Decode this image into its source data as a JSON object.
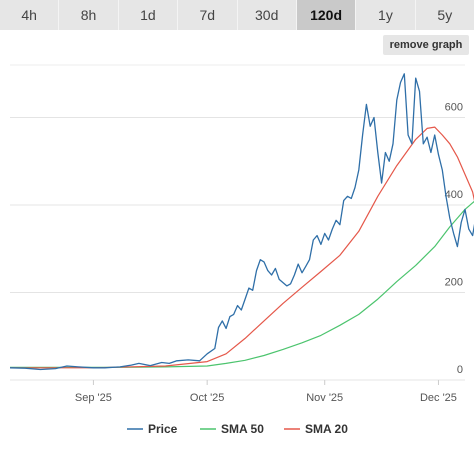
{
  "tabs": [
    {
      "label": "4h",
      "active": false
    },
    {
      "label": "8h",
      "active": false
    },
    {
      "label": "1d",
      "active": false
    },
    {
      "label": "7d",
      "active": false
    },
    {
      "label": "30d",
      "active": false
    },
    {
      "label": "120d",
      "active": true
    },
    {
      "label": "1y",
      "active": false
    },
    {
      "label": "5y",
      "active": false
    }
  ],
  "remove_graph_label": "remove graph",
  "chart_data": {
    "type": "line",
    "title": "",
    "xlabel": "",
    "ylabel": "",
    "x_range": [
      "2025-08-10",
      "2025-12-08"
    ],
    "ylim": [
      0,
      720
    ],
    "y_ticks": [
      0,
      200,
      400,
      600
    ],
    "x_ticks": [
      {
        "date": "2025-09-01",
        "label": "Sep '25"
      },
      {
        "date": "2025-10-01",
        "label": "Oct '25"
      },
      {
        "date": "2025-11-01",
        "label": "Nov '25"
      },
      {
        "date": "2025-12-01",
        "label": "Dec '25"
      }
    ],
    "grid": true,
    "legend_position": "bottom",
    "series": [
      {
        "name": "Price",
        "color": "#2f6fa8",
        "points": [
          [
            "2025-08-10",
            28
          ],
          [
            "2025-08-14",
            27
          ],
          [
            "2025-08-18",
            24
          ],
          [
            "2025-08-22",
            26
          ],
          [
            "2025-08-25",
            32
          ],
          [
            "2025-08-28",
            30
          ],
          [
            "2025-09-01",
            28
          ],
          [
            "2025-09-04",
            28
          ],
          [
            "2025-09-08",
            30
          ],
          [
            "2025-09-11",
            34
          ],
          [
            "2025-09-13",
            38
          ],
          [
            "2025-09-16",
            33
          ],
          [
            "2025-09-19",
            40
          ],
          [
            "2025-09-21",
            38
          ],
          [
            "2025-09-23",
            44
          ],
          [
            "2025-09-26",
            46
          ],
          [
            "2025-09-29",
            44
          ],
          [
            "2025-10-01",
            60
          ],
          [
            "2025-10-03",
            72
          ],
          [
            "2025-10-04",
            120
          ],
          [
            "2025-10-05",
            135
          ],
          [
            "2025-10-06",
            118
          ],
          [
            "2025-10-07",
            145
          ],
          [
            "2025-10-08",
            150
          ],
          [
            "2025-10-09",
            170
          ],
          [
            "2025-10-10",
            160
          ],
          [
            "2025-10-11",
            185
          ],
          [
            "2025-10-12",
            210
          ],
          [
            "2025-10-13",
            205
          ],
          [
            "2025-10-14",
            250
          ],
          [
            "2025-10-15",
            275
          ],
          [
            "2025-10-16",
            270
          ],
          [
            "2025-10-17",
            250
          ],
          [
            "2025-10-18",
            240
          ],
          [
            "2025-10-19",
            255
          ],
          [
            "2025-10-20",
            230
          ],
          [
            "2025-10-22",
            215
          ],
          [
            "2025-10-23",
            220
          ],
          [
            "2025-10-24",
            240
          ],
          [
            "2025-10-25",
            265
          ],
          [
            "2025-10-26",
            245
          ],
          [
            "2025-10-27",
            260
          ],
          [
            "2025-10-28",
            275
          ],
          [
            "2025-10-29",
            320
          ],
          [
            "2025-10-30",
            330
          ],
          [
            "2025-10-31",
            310
          ],
          [
            "2025-11-01",
            335
          ],
          [
            "2025-11-02",
            320
          ],
          [
            "2025-11-03",
            345
          ],
          [
            "2025-11-04",
            365
          ],
          [
            "2025-11-05",
            355
          ],
          [
            "2025-11-06",
            410
          ],
          [
            "2025-11-07",
            420
          ],
          [
            "2025-11-08",
            415
          ],
          [
            "2025-11-09",
            440
          ],
          [
            "2025-11-10",
            480
          ],
          [
            "2025-11-11",
            560
          ],
          [
            "2025-11-12",
            630
          ],
          [
            "2025-11-13",
            580
          ],
          [
            "2025-11-14",
            600
          ],
          [
            "2025-11-15",
            520
          ],
          [
            "2025-11-16",
            450
          ],
          [
            "2025-11-17",
            520
          ],
          [
            "2025-11-18",
            500
          ],
          [
            "2025-11-19",
            540
          ],
          [
            "2025-11-20",
            640
          ],
          [
            "2025-11-21",
            680
          ],
          [
            "2025-11-22",
            700
          ],
          [
            "2025-11-23",
            560
          ],
          [
            "2025-11-24",
            540
          ],
          [
            "2025-11-25",
            690
          ],
          [
            "2025-11-26",
            660
          ],
          [
            "2025-11-27",
            540
          ],
          [
            "2025-11-28",
            555
          ],
          [
            "2025-11-29",
            520
          ],
          [
            "2025-11-30",
            560
          ],
          [
            "2025-12-01",
            515
          ],
          [
            "2025-12-02",
            480
          ],
          [
            "2025-12-03",
            420
          ],
          [
            "2025-12-04",
            370
          ],
          [
            "2025-12-05",
            335
          ],
          [
            "2025-12-06",
            305
          ],
          [
            "2025-12-07",
            360
          ],
          [
            "2025-12-08",
            390
          ],
          [
            "2025-12-09",
            345
          ],
          [
            "2025-12-10",
            330
          ],
          [
            "2025-12-11",
            380
          ]
        ]
      },
      {
        "name": "SMA 50",
        "color": "#4cc46e",
        "points": [
          [
            "2025-08-10",
            29
          ],
          [
            "2025-08-25",
            29
          ],
          [
            "2025-09-10",
            29
          ],
          [
            "2025-09-20",
            30
          ],
          [
            "2025-10-01",
            32
          ],
          [
            "2025-10-06",
            38
          ],
          [
            "2025-10-11",
            45
          ],
          [
            "2025-10-16",
            56
          ],
          [
            "2025-10-21",
            70
          ],
          [
            "2025-10-26",
            85
          ],
          [
            "2025-10-31",
            102
          ],
          [
            "2025-11-05",
            125
          ],
          [
            "2025-11-10",
            150
          ],
          [
            "2025-11-15",
            185
          ],
          [
            "2025-11-20",
            225
          ],
          [
            "2025-11-25",
            262
          ],
          [
            "2025-11-30",
            305
          ],
          [
            "2025-12-04",
            350
          ],
          [
            "2025-12-06",
            370
          ],
          [
            "2025-12-08",
            390
          ],
          [
            "2025-12-10",
            405
          ],
          [
            "2025-12-11",
            412
          ]
        ]
      },
      {
        "name": "SMA 20",
        "color": "#e5584a",
        "points": [
          [
            "2025-08-10",
            28
          ],
          [
            "2025-09-01",
            28
          ],
          [
            "2025-09-20",
            32
          ],
          [
            "2025-10-01",
            42
          ],
          [
            "2025-10-06",
            60
          ],
          [
            "2025-10-11",
            95
          ],
          [
            "2025-10-16",
            135
          ],
          [
            "2025-10-21",
            175
          ],
          [
            "2025-10-26",
            212
          ],
          [
            "2025-10-31",
            248
          ],
          [
            "2025-11-05",
            285
          ],
          [
            "2025-11-10",
            340
          ],
          [
            "2025-11-15",
            420
          ],
          [
            "2025-11-20",
            490
          ],
          [
            "2025-11-25",
            550
          ],
          [
            "2025-11-28",
            575
          ],
          [
            "2025-11-30",
            578
          ],
          [
            "2025-12-02",
            560
          ],
          [
            "2025-12-04",
            540
          ],
          [
            "2025-12-06",
            510
          ],
          [
            "2025-12-08",
            470
          ],
          [
            "2025-12-10",
            430
          ],
          [
            "2025-12-11",
            390
          ]
        ]
      }
    ]
  }
}
